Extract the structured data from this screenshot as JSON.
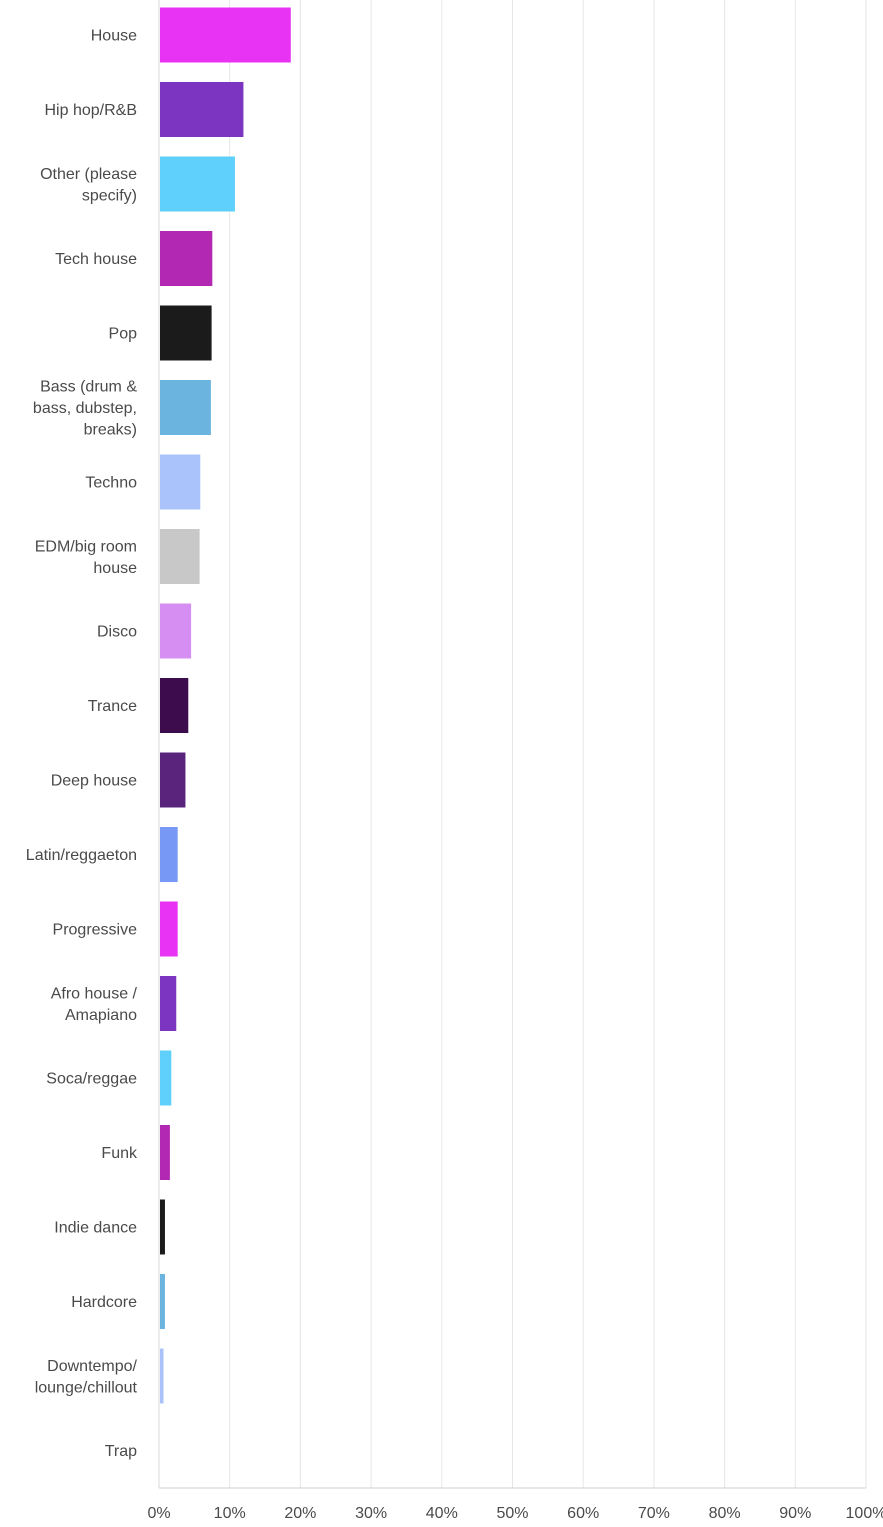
{
  "chart_data": {
    "type": "bar",
    "orientation": "horizontal",
    "title": "",
    "xlabel": "",
    "ylabel": "",
    "xlim": [
      0,
      100
    ],
    "x_ticks": [
      "0%",
      "10%",
      "20%",
      "30%",
      "40%",
      "50%",
      "60%",
      "70%",
      "80%",
      "90%",
      "100%"
    ],
    "grid": true,
    "categories": [
      {
        "label": "House",
        "value": 18.5,
        "color": "#e833f5"
      },
      {
        "label": "Hip hop/R&B",
        "value": 11.8,
        "color": "#7b35c0"
      },
      {
        "label": "Other (please specify)",
        "value": 10.6,
        "color": "#5fd0fb"
      },
      {
        "label": "Tech house",
        "value": 7.4,
        "color": "#b328b3"
      },
      {
        "label": "Pop",
        "value": 7.3,
        "color": "#1b1b1b"
      },
      {
        "label": "Bass (drum & bass, dubstep, breaks)",
        "value": 7.2,
        "color": "#6bb4e0"
      },
      {
        "label": "Techno",
        "value": 5.7,
        "color": "#aac4fb"
      },
      {
        "label": "EDM/big room house",
        "value": 5.6,
        "color": "#c8c8c8"
      },
      {
        "label": "Disco",
        "value": 4.4,
        "color": "#d78ef3"
      },
      {
        "label": "Trance",
        "value": 4.0,
        "color": "#3d0c4c"
      },
      {
        "label": "Deep house",
        "value": 3.6,
        "color": "#5a247d"
      },
      {
        "label": "Latin/reggaeton",
        "value": 2.5,
        "color": "#7898f5"
      },
      {
        "label": "Progressive",
        "value": 2.5,
        "color": "#e833f5"
      },
      {
        "label": "Afro house / Amapiano",
        "value": 2.3,
        "color": "#7b35c0"
      },
      {
        "label": "Soca/reggae",
        "value": 1.6,
        "color": "#5fd0fb"
      },
      {
        "label": "Funk",
        "value": 1.4,
        "color": "#b328b3"
      },
      {
        "label": "Indie dance",
        "value": 0.7,
        "color": "#1b1b1b"
      },
      {
        "label": "Hardcore",
        "value": 0.7,
        "color": "#6bb4e0"
      },
      {
        "label": "Downtempo/ lounge/chillout",
        "value": 0.5,
        "color": "#aac4fb"
      },
      {
        "label": "Trap",
        "value": 0,
        "color": "#c8c8c8"
      }
    ],
    "label_lines": [
      [
        "House"
      ],
      [
        "Hip hop/R&B"
      ],
      [
        "Other (please",
        "specify)"
      ],
      [
        "Tech house"
      ],
      [
        "Pop"
      ],
      [
        "Bass (drum &",
        "bass, dubstep,",
        "breaks)"
      ],
      [
        "Techno"
      ],
      [
        "EDM/big room",
        "house"
      ],
      [
        "Disco"
      ],
      [
        "Trance"
      ],
      [
        "Deep house"
      ],
      [
        "Latin/reggaeton"
      ],
      [
        "Progressive"
      ],
      [
        "Afro house /",
        "Amapiano"
      ],
      [
        "Soca/reggae"
      ],
      [
        "Funk"
      ],
      [
        "Indie dance"
      ],
      [
        "Hardcore"
      ],
      [
        "Downtempo/",
        "lounge/chillout"
      ],
      [
        "Trap"
      ]
    ]
  }
}
